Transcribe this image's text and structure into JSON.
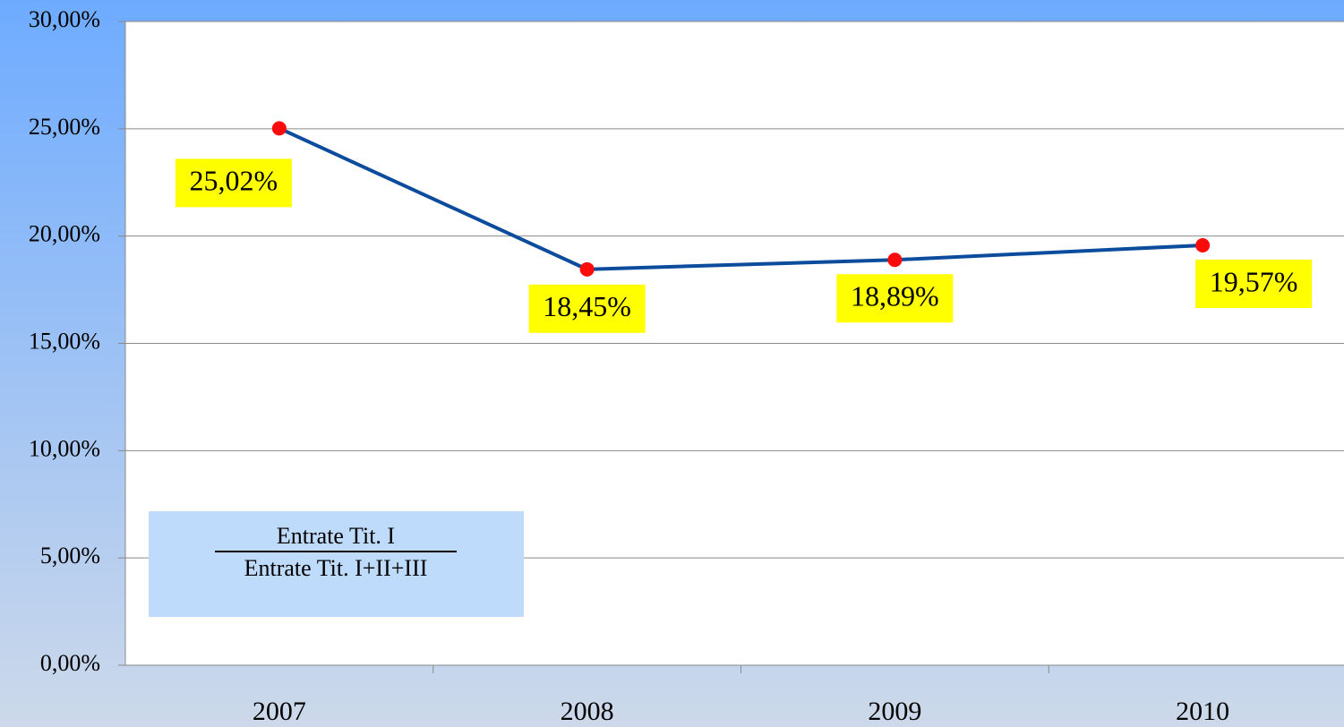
{
  "chart_data": {
    "type": "line",
    "categories": [
      "2007",
      "2008",
      "2009",
      "2010"
    ],
    "series": [
      {
        "color": "#0b4c9c",
        "marker_color": "#ff0a0a",
        "values": [
          25.02,
          18.45,
          18.89,
          19.57
        ],
        "value_labels": [
          "25,02%",
          "18,45%",
          "18,89%",
          "19,57%"
        ]
      }
    ],
    "ylim": [
      0,
      30
    ],
    "yticks": [
      {
        "value": 0,
        "label": "0,00%"
      },
      {
        "value": 5,
        "label": "5,00%"
      },
      {
        "value": 10,
        "label": "10,00%"
      },
      {
        "value": 15,
        "label": "15,00%"
      },
      {
        "value": 20,
        "label": "20,00%"
      },
      {
        "value": 25,
        "label": "25,00%"
      },
      {
        "value": 30,
        "label": "30,00%"
      }
    ],
    "grid": true,
    "annotation": {
      "numerator": "Entrate Tit. I",
      "denominator": "Entrate Tit. I+II+III"
    }
  }
}
